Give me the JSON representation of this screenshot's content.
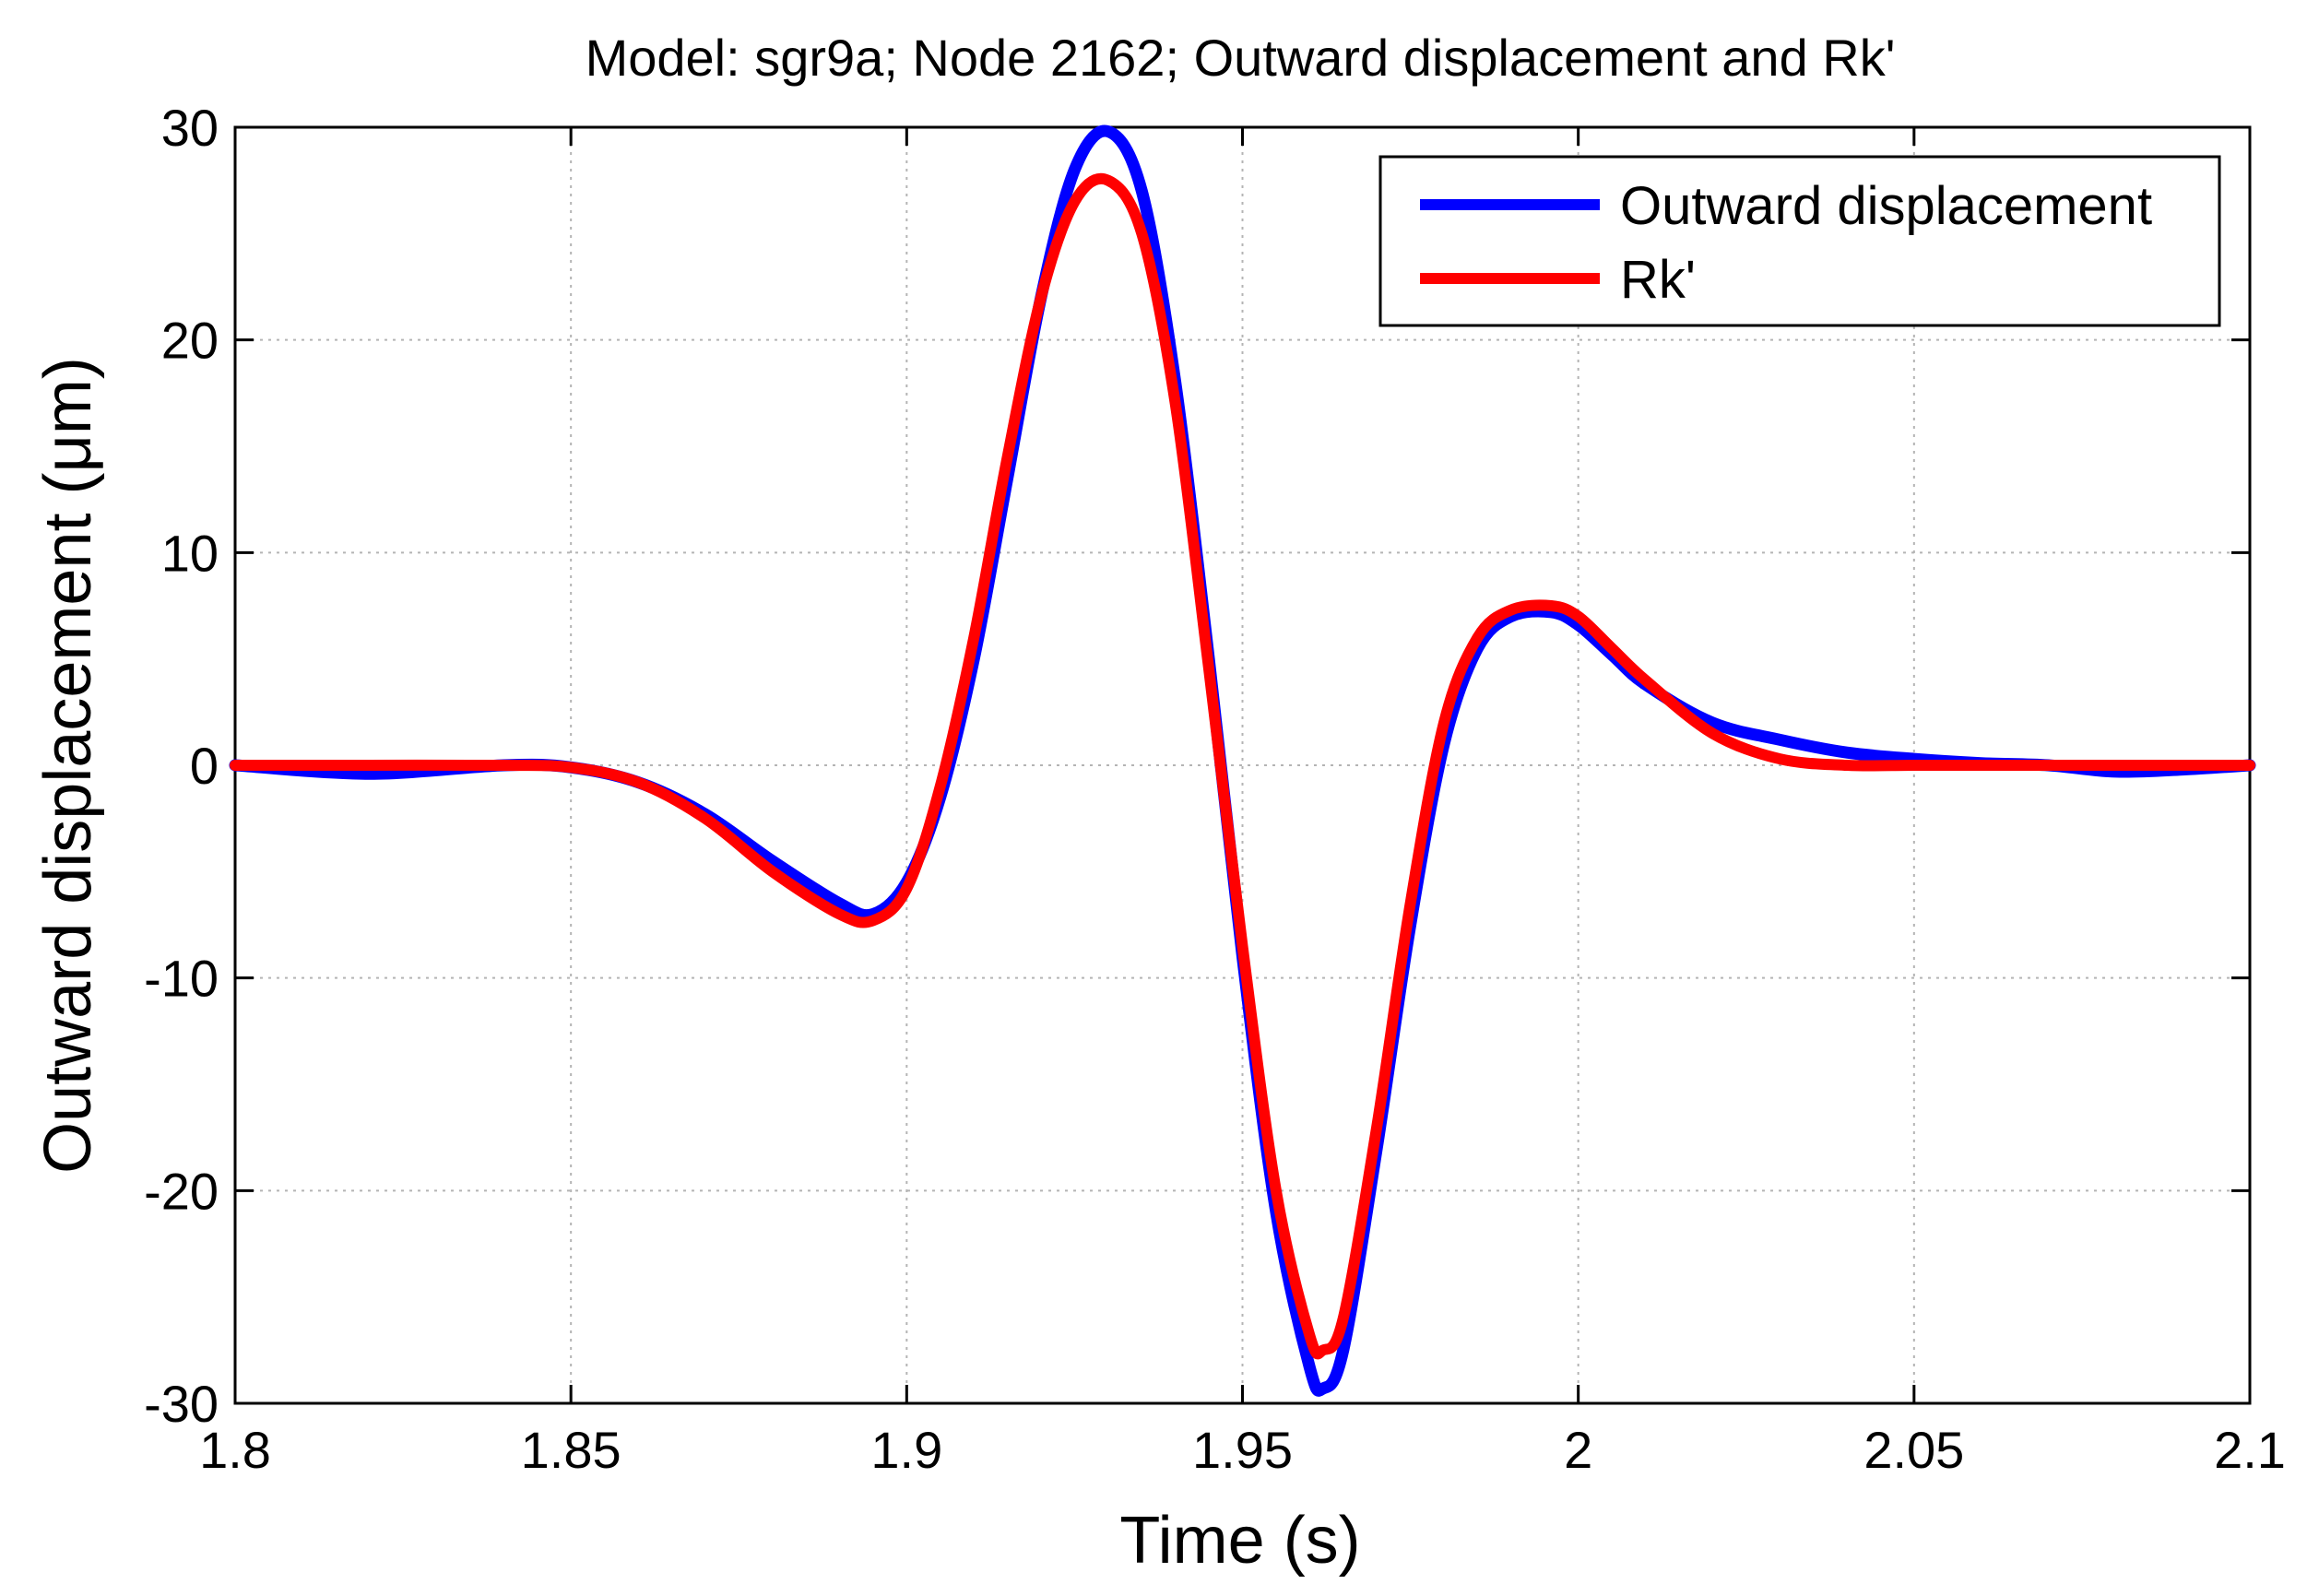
{
  "chart_data": {
    "type": "line",
    "title": "Model: sgr9a; Node 2162; Outward displacement and Rk'",
    "xlabel": "Time (s)",
    "ylabel": "Outward displacement (μm)",
    "xlim": [
      1.8,
      2.1
    ],
    "ylim": [
      -30,
      30
    ],
    "xticks": [
      1.8,
      1.85,
      1.9,
      1.95,
      2,
      2.05,
      2.1
    ],
    "xtick_labels": [
      "1.8",
      "1.85",
      "1.9",
      "1.95",
      "2",
      "2.05",
      "2.1"
    ],
    "yticks": [
      -30,
      -20,
      -10,
      0,
      10,
      20,
      30
    ],
    "ytick_labels": [
      "-30",
      "-20",
      "-10",
      "0",
      "10",
      "20",
      "30"
    ],
    "grid": true,
    "legend_position": "top-right",
    "series": [
      {
        "name": "Outward displacement",
        "color": "#0000ff",
        "x": [
          1.8,
          1.82,
          1.84,
          1.85,
          1.86,
          1.87,
          1.88,
          1.89,
          1.895,
          1.9,
          1.905,
          1.91,
          1.915,
          1.92,
          1.925,
          1.93,
          1.935,
          1.94,
          1.945,
          1.95,
          1.955,
          1.96,
          1.962,
          1.965,
          1.97,
          1.975,
          1.98,
          1.985,
          1.99,
          1.996,
          2.0,
          2.005,
          2.01,
          2.02,
          2.03,
          2.04,
          2.05,
          2.06,
          2.07,
          2.08,
          2.09,
          2.1
        ],
        "y": [
          0,
          -0.4,
          0,
          -0.1,
          -0.8,
          -2.3,
          -4.5,
          -6.5,
          -7.0,
          -5.5,
          -1.5,
          5.0,
          13.5,
          22.0,
          28.0,
          29.8,
          27.0,
          18.0,
          5.0,
          -9.0,
          -21.0,
          -28.3,
          -29.3,
          -27.5,
          -18.0,
          -7.5,
          1.0,
          5.5,
          7.0,
          7.2,
          6.6,
          5.2,
          3.8,
          2.0,
          1.2,
          0.6,
          0.3,
          0.1,
          0,
          -0.3,
          -0.2,
          0
        ]
      },
      {
        "name": "Rk'",
        "color": "#ff0000",
        "x": [
          1.8,
          1.82,
          1.84,
          1.85,
          1.86,
          1.87,
          1.88,
          1.89,
          1.895,
          1.9,
          1.905,
          1.91,
          1.915,
          1.92,
          1.925,
          1.93,
          1.935,
          1.94,
          1.945,
          1.95,
          1.955,
          1.96,
          1.962,
          1.965,
          1.97,
          1.975,
          1.98,
          1.985,
          1.99,
          1.996,
          2.0,
          2.005,
          2.01,
          2.02,
          2.03,
          2.04,
          2.05,
          2.06,
          2.07,
          2.08,
          2.09,
          2.1
        ],
        "y": [
          0,
          0,
          0,
          -0.1,
          -0.8,
          -2.5,
          -5.0,
          -7.0,
          -7.3,
          -5.8,
          -1.0,
          6.0,
          14.5,
          22.0,
          26.5,
          27.5,
          25.0,
          17.0,
          4.5,
          -8.5,
          -20.0,
          -26.8,
          -27.5,
          -26.0,
          -17.0,
          -6.5,
          2.0,
          6.0,
          7.3,
          7.5,
          7.0,
          5.5,
          4.0,
          1.5,
          0.3,
          0,
          0,
          0,
          0,
          0,
          0,
          0
        ]
      }
    ]
  }
}
